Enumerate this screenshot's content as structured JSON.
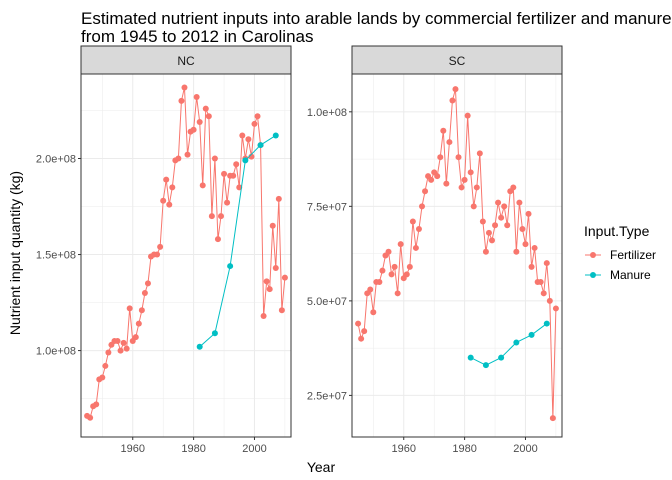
{
  "chart_data": {
    "type": "line",
    "title_line1": "Estimated nutrient inputs into arable lands by commercial fertilizer and manure",
    "title_line2": "from 1945 to 2012 in Carolinas",
    "xlabel": "Year",
    "ylabel": "Nutrient input quantity (kg)",
    "legend": {
      "title": "Input.Type",
      "entries": [
        {
          "name": "Fertilizer",
          "color": "#F8766D"
        },
        {
          "name": "Manure",
          "color": "#00BFC4"
        }
      ]
    },
    "x_tick_labels": [
      "1960",
      "1980",
      "2000"
    ],
    "panels": [
      {
        "name": "NC",
        "xlim": [
          1943,
          2012
        ],
        "ylim": [
          55000000,
          244000000
        ],
        "y_tick_values": [
          100000000,
          150000000,
          200000000
        ],
        "y_tick_labels": [
          "1.0e+08",
          "1.5e+08",
          "2.0e+08"
        ],
        "series": [
          {
            "name": "Fertilizer",
            "x": [
              1945,
              1946,
              1947,
              1948,
              1949,
              1950,
              1951,
              1952,
              1953,
              1954,
              1955,
              1956,
              1957,
              1958,
              1959,
              1960,
              1961,
              1962,
              1963,
              1964,
              1965,
              1966,
              1967,
              1968,
              1969,
              1970,
              1971,
              1972,
              1973,
              1974,
              1975,
              1976,
              1977,
              1978,
              1979,
              1980,
              1981,
              1982,
              1983,
              1984,
              1985,
              1986,
              1987,
              1988,
              1989,
              1990,
              1991,
              1992,
              1993,
              1994,
              1995,
              1996,
              1997,
              1998,
              1999,
              2000,
              2001,
              2002,
              2003,
              2004,
              2005,
              2006,
              2007,
              2008,
              2009,
              2010
            ],
            "values": [
              66000000,
              65000000,
              71000000,
              72000000,
              85000000,
              86000000,
              92000000,
              99000000,
              103000000,
              105000000,
              105000000,
              100000000,
              104000000,
              101000000,
              122000000,
              105000000,
              107000000,
              114000000,
              121000000,
              130000000,
              135000000,
              149000000,
              150000000,
              150000000,
              154000000,
              178000000,
              189000000,
              176000000,
              185000000,
              199000000,
              200000000,
              230000000,
              237000000,
              202000000,
              214000000,
              215000000,
              232000000,
              219000000,
              186000000,
              226000000,
              222000000,
              170000000,
              200000000,
              158000000,
              170000000,
              192000000,
              177000000,
              191000000,
              191000000,
              197000000,
              185000000,
              212000000,
              200000000,
              210000000,
              201000000,
              218000000,
              222000000,
              207000000,
              118000000,
              136000000,
              132000000,
              165000000,
              143000000,
              179000000,
              121000000,
              138000000
            ]
          },
          {
            "name": "Manure",
            "x": [
              1982,
              1987,
              1992,
              1997,
              2002,
              2007
            ],
            "values": [
              102000000,
              109000000,
              144000000,
              199000000,
              207000000,
              212000000
            ]
          }
        ]
      },
      {
        "name": "SC",
        "xlim": [
          1943,
          2012
        ],
        "ylim": [
          14000000,
          110000000
        ],
        "y_tick_values": [
          25000000,
          50000000,
          75000000,
          100000000
        ],
        "y_tick_labels": [
          "2.5e+07",
          "5.0e+07",
          "7.5e+07",
          "1.0e+08"
        ],
        "series": [
          {
            "name": "Fertilizer",
            "x": [
              1945,
              1946,
              1947,
              1948,
              1949,
              1950,
              1951,
              1952,
              1953,
              1954,
              1955,
              1956,
              1957,
              1958,
              1959,
              1960,
              1961,
              1962,
              1963,
              1964,
              1965,
              1966,
              1967,
              1968,
              1969,
              1970,
              1971,
              1972,
              1973,
              1974,
              1975,
              1976,
              1977,
              1978,
              1979,
              1980,
              1981,
              1982,
              1983,
              1984,
              1985,
              1986,
              1987,
              1988,
              1989,
              1990,
              1991,
              1992,
              1993,
              1994,
              1995,
              1996,
              1997,
              1998,
              1999,
              2000,
              2001,
              2002,
              2003,
              2004,
              2005,
              2006,
              2007,
              2008,
              2009,
              2010
            ],
            "values": [
              44000000,
              40000000,
              42000000,
              52000000,
              53000000,
              47000000,
              55000000,
              55000000,
              58000000,
              62000000,
              63000000,
              57000000,
              59000000,
              52000000,
              65000000,
              56000000,
              57000000,
              59000000,
              71000000,
              64000000,
              69000000,
              75000000,
              79000000,
              83000000,
              82000000,
              84000000,
              83000000,
              88000000,
              95000000,
              81000000,
              92000000,
              103000000,
              106000000,
              88000000,
              80000000,
              82000000,
              99000000,
              84000000,
              75000000,
              80000000,
              89000000,
              71000000,
              63000000,
              68000000,
              66000000,
              70000000,
              76000000,
              72000000,
              75000000,
              70000000,
              79000000,
              80000000,
              63000000,
              76000000,
              69000000,
              65000000,
              73000000,
              59000000,
              64000000,
              55000000,
              55000000,
              52000000,
              60000000,
              50000000,
              19000000,
              48000000
            ]
          },
          {
            "name": "Manure",
            "x": [
              1982,
              1987,
              1992,
              1997,
              2002,
              2007
            ],
            "values": [
              35000000,
              33000000,
              35000000,
              39000000,
              41000000,
              44000000
            ]
          }
        ]
      }
    ]
  }
}
